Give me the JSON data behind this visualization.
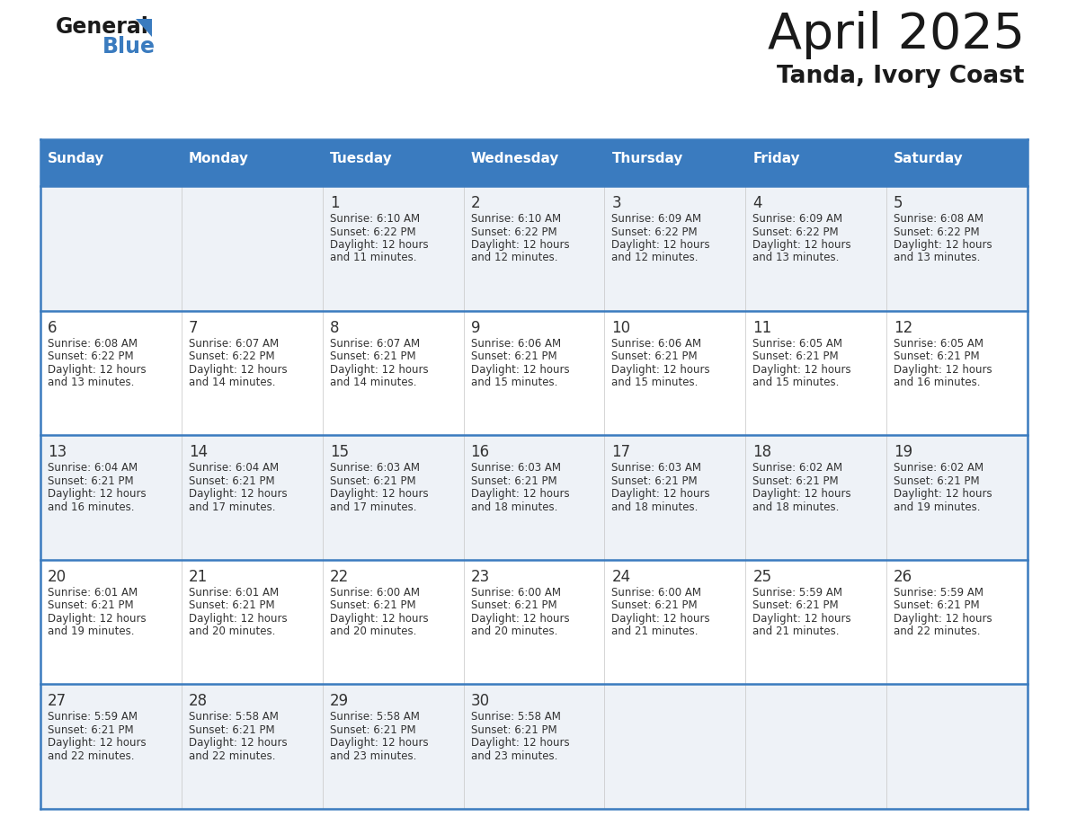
{
  "title": "April 2025",
  "subtitle": "Tanda, Ivory Coast",
  "header_bg": "#3a7bbf",
  "header_text_color": "#ffffff",
  "cell_bg_odd": "#eef2f7",
  "cell_bg_even": "#ffffff",
  "border_color": "#3a7bbf",
  "text_color": "#333333",
  "days_of_week": [
    "Sunday",
    "Monday",
    "Tuesday",
    "Wednesday",
    "Thursday",
    "Friday",
    "Saturday"
  ],
  "calendar_data": [
    [
      {
        "day": "",
        "lines": []
      },
      {
        "day": "",
        "lines": []
      },
      {
        "day": "1",
        "lines": [
          "Sunrise: 6:10 AM",
          "Sunset: 6:22 PM",
          "Daylight: 12 hours",
          "and 11 minutes."
        ]
      },
      {
        "day": "2",
        "lines": [
          "Sunrise: 6:10 AM",
          "Sunset: 6:22 PM",
          "Daylight: 12 hours",
          "and 12 minutes."
        ]
      },
      {
        "day": "3",
        "lines": [
          "Sunrise: 6:09 AM",
          "Sunset: 6:22 PM",
          "Daylight: 12 hours",
          "and 12 minutes."
        ]
      },
      {
        "day": "4",
        "lines": [
          "Sunrise: 6:09 AM",
          "Sunset: 6:22 PM",
          "Daylight: 12 hours",
          "and 13 minutes."
        ]
      },
      {
        "day": "5",
        "lines": [
          "Sunrise: 6:08 AM",
          "Sunset: 6:22 PM",
          "Daylight: 12 hours",
          "and 13 minutes."
        ]
      }
    ],
    [
      {
        "day": "6",
        "lines": [
          "Sunrise: 6:08 AM",
          "Sunset: 6:22 PM",
          "Daylight: 12 hours",
          "and 13 minutes."
        ]
      },
      {
        "day": "7",
        "lines": [
          "Sunrise: 6:07 AM",
          "Sunset: 6:22 PM",
          "Daylight: 12 hours",
          "and 14 minutes."
        ]
      },
      {
        "day": "8",
        "lines": [
          "Sunrise: 6:07 AM",
          "Sunset: 6:21 PM",
          "Daylight: 12 hours",
          "and 14 minutes."
        ]
      },
      {
        "day": "9",
        "lines": [
          "Sunrise: 6:06 AM",
          "Sunset: 6:21 PM",
          "Daylight: 12 hours",
          "and 15 minutes."
        ]
      },
      {
        "day": "10",
        "lines": [
          "Sunrise: 6:06 AM",
          "Sunset: 6:21 PM",
          "Daylight: 12 hours",
          "and 15 minutes."
        ]
      },
      {
        "day": "11",
        "lines": [
          "Sunrise: 6:05 AM",
          "Sunset: 6:21 PM",
          "Daylight: 12 hours",
          "and 15 minutes."
        ]
      },
      {
        "day": "12",
        "lines": [
          "Sunrise: 6:05 AM",
          "Sunset: 6:21 PM",
          "Daylight: 12 hours",
          "and 16 minutes."
        ]
      }
    ],
    [
      {
        "day": "13",
        "lines": [
          "Sunrise: 6:04 AM",
          "Sunset: 6:21 PM",
          "Daylight: 12 hours",
          "and 16 minutes."
        ]
      },
      {
        "day": "14",
        "lines": [
          "Sunrise: 6:04 AM",
          "Sunset: 6:21 PM",
          "Daylight: 12 hours",
          "and 17 minutes."
        ]
      },
      {
        "day": "15",
        "lines": [
          "Sunrise: 6:03 AM",
          "Sunset: 6:21 PM",
          "Daylight: 12 hours",
          "and 17 minutes."
        ]
      },
      {
        "day": "16",
        "lines": [
          "Sunrise: 6:03 AM",
          "Sunset: 6:21 PM",
          "Daylight: 12 hours",
          "and 18 minutes."
        ]
      },
      {
        "day": "17",
        "lines": [
          "Sunrise: 6:03 AM",
          "Sunset: 6:21 PM",
          "Daylight: 12 hours",
          "and 18 minutes."
        ]
      },
      {
        "day": "18",
        "lines": [
          "Sunrise: 6:02 AM",
          "Sunset: 6:21 PM",
          "Daylight: 12 hours",
          "and 18 minutes."
        ]
      },
      {
        "day": "19",
        "lines": [
          "Sunrise: 6:02 AM",
          "Sunset: 6:21 PM",
          "Daylight: 12 hours",
          "and 19 minutes."
        ]
      }
    ],
    [
      {
        "day": "20",
        "lines": [
          "Sunrise: 6:01 AM",
          "Sunset: 6:21 PM",
          "Daylight: 12 hours",
          "and 19 minutes."
        ]
      },
      {
        "day": "21",
        "lines": [
          "Sunrise: 6:01 AM",
          "Sunset: 6:21 PM",
          "Daylight: 12 hours",
          "and 20 minutes."
        ]
      },
      {
        "day": "22",
        "lines": [
          "Sunrise: 6:00 AM",
          "Sunset: 6:21 PM",
          "Daylight: 12 hours",
          "and 20 minutes."
        ]
      },
      {
        "day": "23",
        "lines": [
          "Sunrise: 6:00 AM",
          "Sunset: 6:21 PM",
          "Daylight: 12 hours",
          "and 20 minutes."
        ]
      },
      {
        "day": "24",
        "lines": [
          "Sunrise: 6:00 AM",
          "Sunset: 6:21 PM",
          "Daylight: 12 hours",
          "and 21 minutes."
        ]
      },
      {
        "day": "25",
        "lines": [
          "Sunrise: 5:59 AM",
          "Sunset: 6:21 PM",
          "Daylight: 12 hours",
          "and 21 minutes."
        ]
      },
      {
        "day": "26",
        "lines": [
          "Sunrise: 5:59 AM",
          "Sunset: 6:21 PM",
          "Daylight: 12 hours",
          "and 22 minutes."
        ]
      }
    ],
    [
      {
        "day": "27",
        "lines": [
          "Sunrise: 5:59 AM",
          "Sunset: 6:21 PM",
          "Daylight: 12 hours",
          "and 22 minutes."
        ]
      },
      {
        "day": "28",
        "lines": [
          "Sunrise: 5:58 AM",
          "Sunset: 6:21 PM",
          "Daylight: 12 hours",
          "and 22 minutes."
        ]
      },
      {
        "day": "29",
        "lines": [
          "Sunrise: 5:58 AM",
          "Sunset: 6:21 PM",
          "Daylight: 12 hours",
          "and 23 minutes."
        ]
      },
      {
        "day": "30",
        "lines": [
          "Sunrise: 5:58 AM",
          "Sunset: 6:21 PM",
          "Daylight: 12 hours",
          "and 23 minutes."
        ]
      },
      {
        "day": "",
        "lines": []
      },
      {
        "day": "",
        "lines": []
      },
      {
        "day": "",
        "lines": []
      }
    ]
  ],
  "logo_general_color": "#1a1a1a",
  "logo_blue_color": "#3a7bbf",
  "title_color": "#1a1a1a",
  "subtitle_color": "#1a1a1a"
}
